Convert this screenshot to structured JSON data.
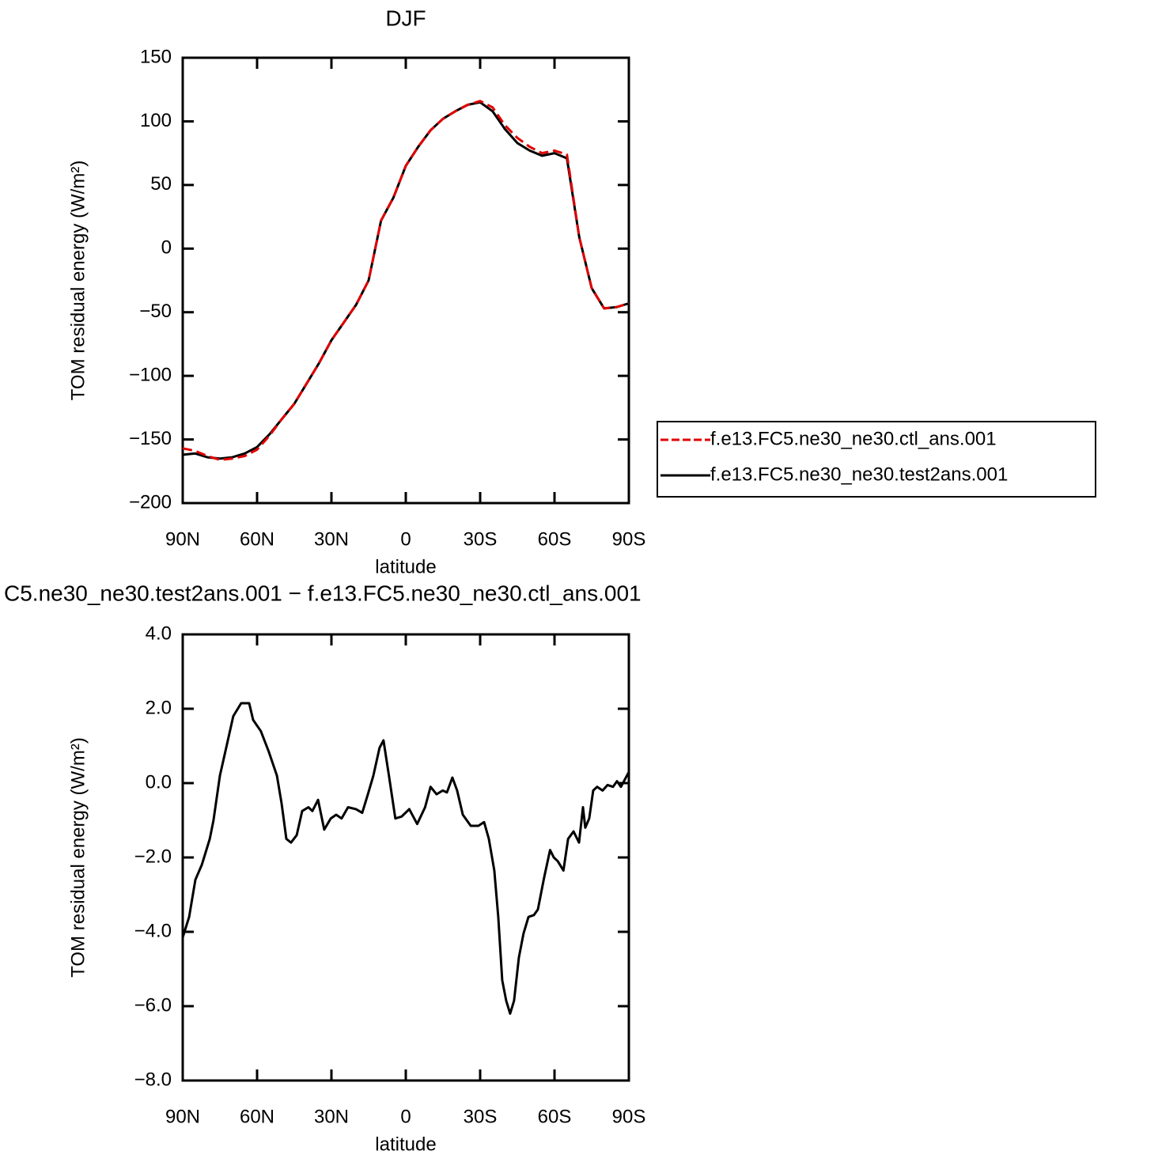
{
  "chart_data": [
    {
      "type": "line",
      "title": "DJF",
      "xlabel": "latitude",
      "ylabel": "TOM residual energy (W/m²)",
      "x": [
        90,
        85,
        80,
        75,
        70,
        65,
        60,
        55,
        50,
        45,
        40,
        35,
        30,
        25,
        20,
        15,
        10,
        5,
        0,
        -5,
        -10,
        -15,
        -20,
        -25,
        -30,
        -35,
        -40,
        -45,
        -50,
        -55,
        -60,
        -65,
        -70,
        -75,
        -80,
        -85,
        -90
      ],
      "series": [
        {
          "name": "f.e13.FC5.ne30_ne30.ctl_ans.001",
          "color": "#e00000",
          "dash": true,
          "values": [
            -157,
            -159,
            -163,
            -166,
            -165,
            -163,
            -158,
            -147,
            -134,
            -122,
            -106,
            -90,
            -72,
            -58,
            -44,
            -25,
            22,
            40,
            65,
            80,
            93,
            102,
            108,
            113,
            116,
            111,
            97,
            87,
            80,
            75,
            77,
            74,
            9,
            -31,
            -47,
            -46,
            -43
          ]
        },
        {
          "name": "f.e13.FC5.ne30_ne30.test2ans.001",
          "color": "#000000",
          "dash": false,
          "values": [
            -162,
            -161,
            -164,
            -165,
            -164,
            -161,
            -156,
            -146,
            -134,
            -122,
            -106,
            -90,
            -72,
            -58,
            -44,
            -25,
            22,
            40,
            65,
            80,
            93,
            102,
            108,
            113,
            115,
            108,
            94,
            83,
            77,
            73,
            75,
            71,
            9,
            -31,
            -47,
            -46,
            -43
          ]
        }
      ],
      "xlim": [
        90,
        -90
      ],
      "xticks": [
        {
          "value": 90,
          "label": "90N"
        },
        {
          "value": 60,
          "label": "60N"
        },
        {
          "value": 30,
          "label": "30N"
        },
        0,
        {
          "value": -30,
          "label": "30S"
        },
        {
          "value": -60,
          "label": "60S"
        },
        {
          "value": -90,
          "label": "90S"
        }
      ],
      "ylim": [
        -200,
        150
      ],
      "yticks": [
        {
          "value": -200,
          "label": "−200"
        },
        {
          "value": -150,
          "label": "−150"
        },
        {
          "value": -100,
          "label": "−100"
        },
        {
          "value": -50,
          "label": "−50"
        },
        0,
        50,
        100,
        150
      ],
      "legend": "right"
    },
    {
      "type": "line",
      "title": "C5.ne30_ne30.test2ans.001 − f.e13.FC5.ne30_ne30.ctl_ans.001",
      "xlabel": "latitude",
      "ylabel": "TOM residual energy (W/m²)",
      "x": [
        90,
        87.4,
        84.9,
        82.3,
        79.1,
        77.6,
        75.0,
        72.8,
        69.6,
        66.4,
        63.2,
        61.6,
        58.5,
        55.3,
        52.0,
        50.1,
        48.2,
        46.3,
        44.0,
        41.8,
        39.3,
        37.7,
        35.4,
        32.9,
        30.3,
        28.1,
        25.9,
        23.3,
        20.1,
        17.6,
        15.3,
        13.1,
        10.6,
        9.0,
        6.8,
        4.2,
        1.7,
        -1.4,
        -4.6,
        -7.8,
        -10.0,
        -12.4,
        -14.9,
        -16.6,
        -18.8,
        -20.7,
        -23.0,
        -26.2,
        -29.3,
        -31.6,
        -33.5,
        -35.7,
        -37.3,
        -38.9,
        -40.5,
        -42.1,
        -43.7,
        -45.6,
        -47.5,
        -49.5,
        -51.7,
        -53.3,
        -55.8,
        -58.2,
        -59.7,
        -61.3,
        -63.6,
        -65.5,
        -67.7,
        -69.9,
        -71.5,
        -72.4,
        -74.0,
        -75.6,
        -77.2,
        -79.4,
        -81.4,
        -83.6,
        -85.2,
        -86.8,
        -88.4,
        -90
      ],
      "series": [
        {
          "color": "#000000",
          "dash": false,
          "values": [
            -4.15,
            -3.6,
            -2.6,
            -2.2,
            -1.5,
            -1.0,
            0.2,
            0.85,
            1.8,
            2.15,
            2.15,
            1.7,
            1.4,
            0.85,
            0.2,
            -0.55,
            -1.5,
            -1.6,
            -1.4,
            -0.75,
            -0.65,
            -0.75,
            -0.45,
            -1.25,
            -0.95,
            -0.85,
            -0.95,
            -0.65,
            -0.7,
            -0.8,
            -0.3,
            0.2,
            0.95,
            1.15,
            0.2,
            -0.95,
            -0.9,
            -0.7,
            -1.1,
            -0.65,
            -0.1,
            -0.3,
            -0.2,
            -0.25,
            0.15,
            -0.2,
            -0.85,
            -1.15,
            -1.15,
            -1.05,
            -1.5,
            -2.35,
            -3.6,
            -5.3,
            -5.85,
            -6.2,
            -5.85,
            -4.7,
            -4.05,
            -3.6,
            -3.55,
            -3.4,
            -2.55,
            -1.8,
            -2.0,
            -2.1,
            -2.35,
            -1.5,
            -1.3,
            -1.6,
            -0.65,
            -1.2,
            -0.95,
            -0.2,
            -0.1,
            -0.2,
            -0.05,
            -0.1,
            0.05,
            -0.1,
            0.1,
            0.3
          ]
        }
      ],
      "xlim": [
        90,
        -90
      ],
      "xticks": [
        {
          "value": 90,
          "label": "90N"
        },
        {
          "value": 60,
          "label": "60N"
        },
        {
          "value": 30,
          "label": "30N"
        },
        0,
        {
          "value": -30,
          "label": "30S"
        },
        {
          "value": -60,
          "label": "60S"
        },
        {
          "value": -90,
          "label": "90S"
        }
      ],
      "ylim": [
        -8,
        4
      ],
      "yticks": [
        {
          "value": -8,
          "label": "−8.0"
        },
        {
          "value": -6,
          "label": "−6.0"
        },
        {
          "value": -4,
          "label": "−4.0"
        },
        {
          "value": -2,
          "label": "−2.0"
        },
        {
          "value": 0,
          "label": "0.0"
        },
        {
          "value": 2,
          "label": "2.0"
        },
        {
          "value": 4,
          "label": "4.0"
        }
      ]
    }
  ]
}
